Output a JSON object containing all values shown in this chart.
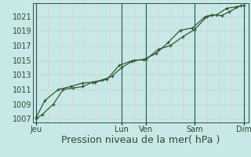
{
  "title": "",
  "xlabel": "Pression niveau de la mer( hPa )",
  "ylabel": "",
  "background_color": "#c8e8e8",
  "plot_bg_color": "#c8e8e8",
  "grid_color_h": "#b8d8d8",
  "grid_color_v": "#e8c8c8",
  "line_color": "#2d5a2d",
  "ylim": [
    1006.5,
    1022.8
  ],
  "yticks": [
    1007,
    1009,
    1011,
    1013,
    1015,
    1017,
    1019,
    1021
  ],
  "xtick_labels": [
    "Jeu",
    "",
    "Lun",
    "Ven",
    "",
    "Sam",
    "",
    "Dim"
  ],
  "xtick_positions": [
    0.0,
    1.75,
    3.5,
    4.5,
    5.5,
    6.5,
    7.5,
    8.5
  ],
  "day_vlines": [
    0.0,
    3.5,
    4.5,
    6.5,
    8.5
  ],
  "vline_color": "#2a5050",
  "font_color": "#2d4a2d",
  "tick_fontsize": 7,
  "xlabel_fontsize": 9,
  "series1_x": [
    0.0,
    0.25,
    0.7,
    1.1,
    1.5,
    1.9,
    2.3,
    2.7,
    3.1,
    3.5,
    4.0,
    4.5,
    5.0,
    5.5,
    6.0,
    6.5,
    7.0,
    7.4,
    7.8,
    8.2,
    8.5
  ],
  "series1_y": [
    1007.0,
    1007.6,
    1009.0,
    1011.0,
    1011.2,
    1011.4,
    1012.0,
    1012.3,
    1012.8,
    1014.0,
    1015.0,
    1015.1,
    1016.5,
    1017.0,
    1018.2,
    1019.2,
    1021.0,
    1021.2,
    1022.1,
    1022.3,
    1022.5
  ],
  "series2_x": [
    0.0,
    0.35,
    0.9,
    1.4,
    1.9,
    2.4,
    2.9,
    3.4,
    3.9,
    4.4,
    4.9,
    5.4,
    5.9,
    6.4,
    6.9,
    7.2,
    7.6,
    7.9,
    8.4
  ],
  "series2_y": [
    1007.2,
    1009.5,
    1011.0,
    1011.4,
    1011.9,
    1012.0,
    1012.4,
    1014.3,
    1014.9,
    1015.1,
    1015.9,
    1017.4,
    1019.1,
    1019.4,
    1020.9,
    1021.2,
    1021.1,
    1021.6,
    1022.5
  ],
  "xlim": [
    -0.15,
    8.7
  ],
  "hgrid_positions": [
    1007,
    1009,
    1011,
    1013,
    1015,
    1017,
    1019,
    1021
  ],
  "vgrid_positions": [
    0.5,
    1.0,
    1.5,
    2.0,
    2.5,
    3.0,
    3.5,
    4.0,
    4.5,
    5.0,
    5.5,
    6.0,
    6.5,
    7.0,
    7.5,
    8.0,
    8.5
  ]
}
